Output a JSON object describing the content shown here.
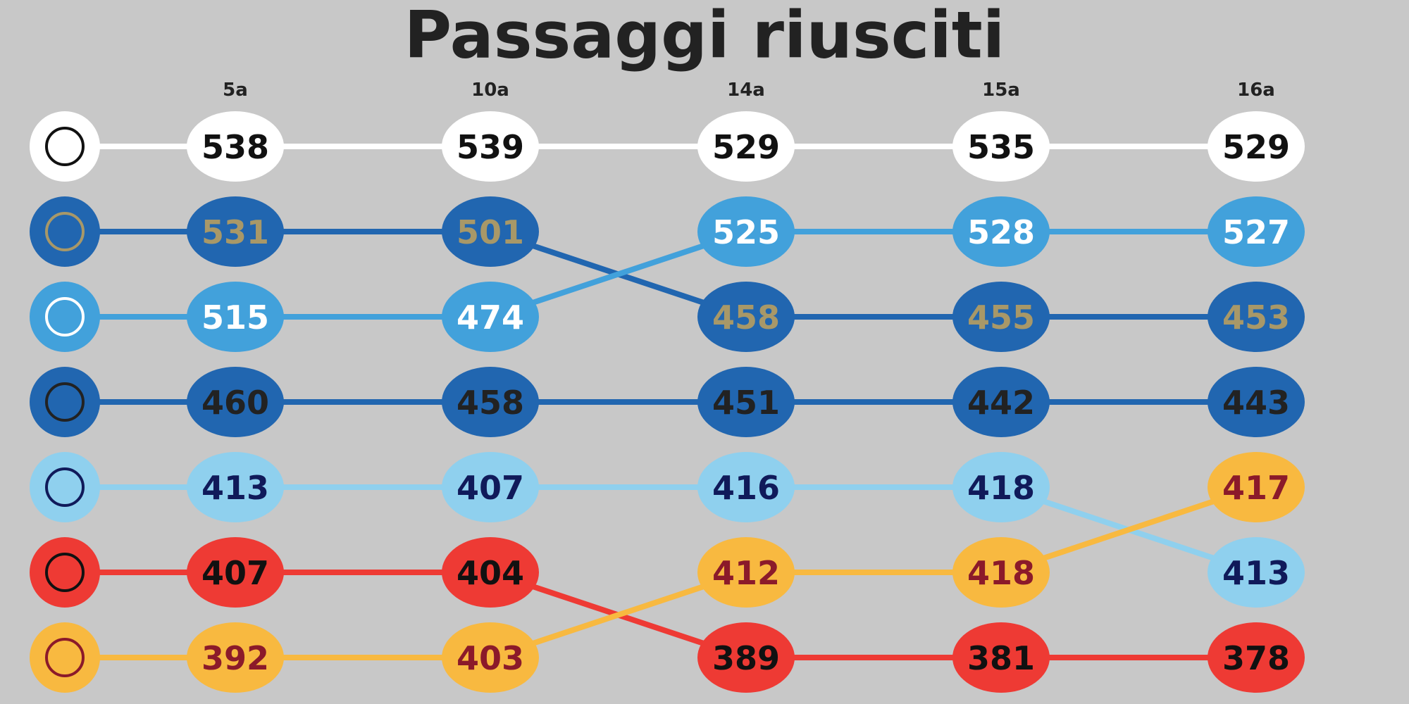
{
  "chart_data": {
    "type": "bump",
    "title": "Passaggi riusciti",
    "categories": [
      "5a",
      "10a",
      "14a",
      "15a",
      "16a"
    ],
    "series": [
      {
        "color": "#ffffff",
        "text_color": "#111111",
        "values": [
          538,
          539,
          529,
          535,
          529
        ]
      },
      {
        "color": "#2166b0",
        "text_color": "#a89868",
        "values": [
          531,
          501,
          458,
          455,
          453
        ]
      },
      {
        "color": "#42a1db",
        "text_color": "#ffffff",
        "values": [
          515,
          474,
          525,
          528,
          527
        ]
      },
      {
        "color": "#2166b0",
        "text_color": "#222222",
        "values": [
          460,
          458,
          451,
          442,
          443
        ]
      },
      {
        "color": "#8fd0ee",
        "text_color": "#101a5a",
        "values": [
          413,
          407,
          416,
          418,
          413
        ]
      },
      {
        "color": "#ee3a34",
        "text_color": "#111111",
        "values": [
          407,
          404,
          389,
          381,
          378
        ]
      },
      {
        "color": "#f8b940",
        "text_color": "#8b1a2a",
        "values": [
          392,
          403,
          412,
          418,
          417
        ]
      }
    ]
  }
}
